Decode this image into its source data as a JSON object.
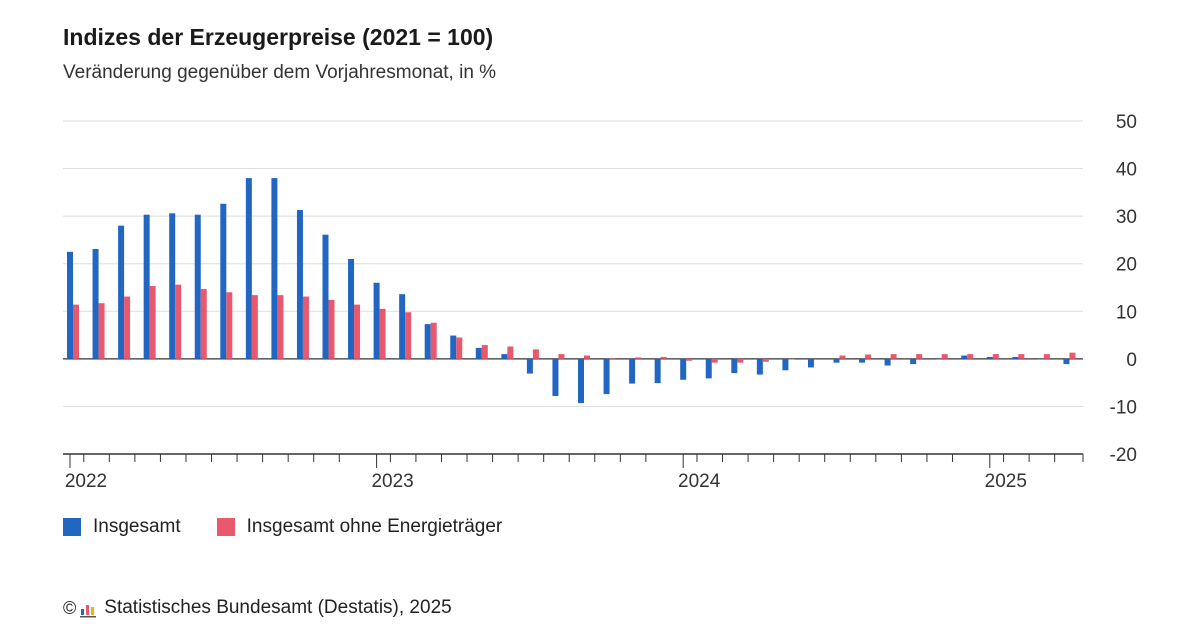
{
  "header": {
    "title": "Indizes der Erzeugerpreise (2021 = 100)",
    "subtitle": "Veränderung gegenüber dem Vorjahresmonat, in %"
  },
  "legend": {
    "items": [
      {
        "label": "Insgesamt",
        "color": "#2266c4"
      },
      {
        "label": "Insgesamt ohne Energieträger",
        "color": "#e8596e"
      }
    ]
  },
  "footer": {
    "copyright_symbol": "©",
    "source": "Statistisches Bundesamt (Destatis), 2025",
    "logo_icon": "destatis-logo-icon"
  },
  "chart_data": {
    "type": "bar",
    "ylim": [
      -20,
      50
    ],
    "yticks": [
      50,
      40,
      30,
      20,
      10,
      0,
      -10,
      -20
    ],
    "grid": true,
    "legend_position": "bottom-left",
    "year_labels": [
      "2022",
      "2023",
      "2024",
      "2025"
    ],
    "categories": [
      "2022-01",
      "2022-02",
      "2022-03",
      "2022-04",
      "2022-05",
      "2022-06",
      "2022-07",
      "2022-08",
      "2022-09",
      "2022-10",
      "2022-11",
      "2022-12",
      "2023-01",
      "2023-02",
      "2023-03",
      "2023-04",
      "2023-05",
      "2023-06",
      "2023-07",
      "2023-08",
      "2023-09",
      "2023-10",
      "2023-11",
      "2023-12",
      "2024-01",
      "2024-02",
      "2024-03",
      "2024-04",
      "2024-05",
      "2024-06",
      "2024-07",
      "2024-08",
      "2024-09",
      "2024-10",
      "2024-11",
      "2024-12",
      "2025-01",
      "2025-02",
      "2025-03",
      "2025-04"
    ],
    "series": [
      {
        "name": "Insgesamt",
        "color": "#2266c4",
        "values": [
          22.5,
          23.1,
          28.0,
          30.3,
          30.6,
          30.3,
          32.6,
          38.0,
          38.0,
          31.3,
          26.1,
          21.0,
          16.0,
          13.6,
          7.3,
          4.9,
          2.3,
          1.0,
          -3.1,
          -7.8,
          -9.3,
          -7.4,
          -5.2,
          -5.1,
          -4.4,
          -4.1,
          -3.0,
          -3.3,
          -2.4,
          -1.8,
          -0.8,
          -0.8,
          -1.4,
          -1.1,
          -0.1,
          0.7,
          0.4,
          0.4,
          -0.1,
          -1.1
        ]
      },
      {
        "name": "Insgesamt ohne Energieträger",
        "color": "#e8596e",
        "values": [
          11.4,
          11.7,
          13.1,
          15.3,
          15.6,
          14.7,
          14.0,
          13.4,
          13.4,
          13.1,
          12.4,
          11.4,
          10.5,
          9.8,
          7.6,
          4.5,
          2.9,
          2.6,
          2.0,
          1.0,
          0.7,
          0.1,
          0.3,
          0.4,
          -0.4,
          -0.8,
          -0.8,
          -0.6,
          -0.1,
          0.0,
          0.7,
          0.9,
          1.0,
          1.0,
          1.0,
          1.0,
          1.0,
          1.0,
          1.0,
          1.3
        ]
      }
    ]
  }
}
